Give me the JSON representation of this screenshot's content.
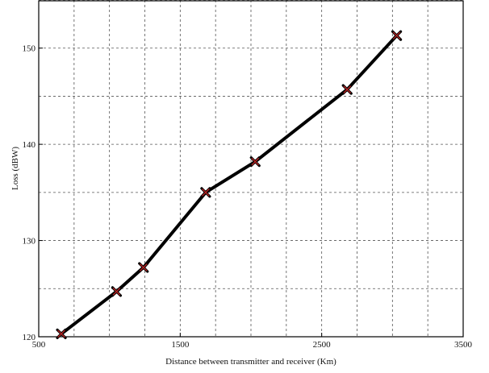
{
  "chart_data": {
    "type": "line",
    "title": "",
    "xlabel": "Distance between transmitter and receiver  (Km)",
    "ylabel": "Loss  (dBW)",
    "xlim": [
      500,
      3500
    ],
    "ylim": [
      120,
      155
    ],
    "x_ticks_labeled": [
      500,
      1500,
      2500,
      3500
    ],
    "y_ticks_labeled": [
      120,
      130,
      140,
      150
    ],
    "x_grid": [
      500,
      750,
      1000,
      1250,
      1500,
      1750,
      2000,
      2250,
      2500,
      2750,
      3000,
      3250,
      3500
    ],
    "y_grid": [
      120,
      125,
      130,
      135,
      140,
      145,
      150,
      155
    ],
    "grid": true,
    "grid_style": "dashed",
    "legend": "none",
    "series": [
      {
        "marker": "x",
        "line_color": "#000000",
        "marker_color": "#b22222",
        "x": [
          660,
          1050,
          1240,
          1680,
          2030,
          2680,
          3030
        ],
        "y": [
          120.3,
          124.7,
          127.2,
          135.0,
          138.2,
          145.7,
          151.3
        ]
      }
    ]
  }
}
